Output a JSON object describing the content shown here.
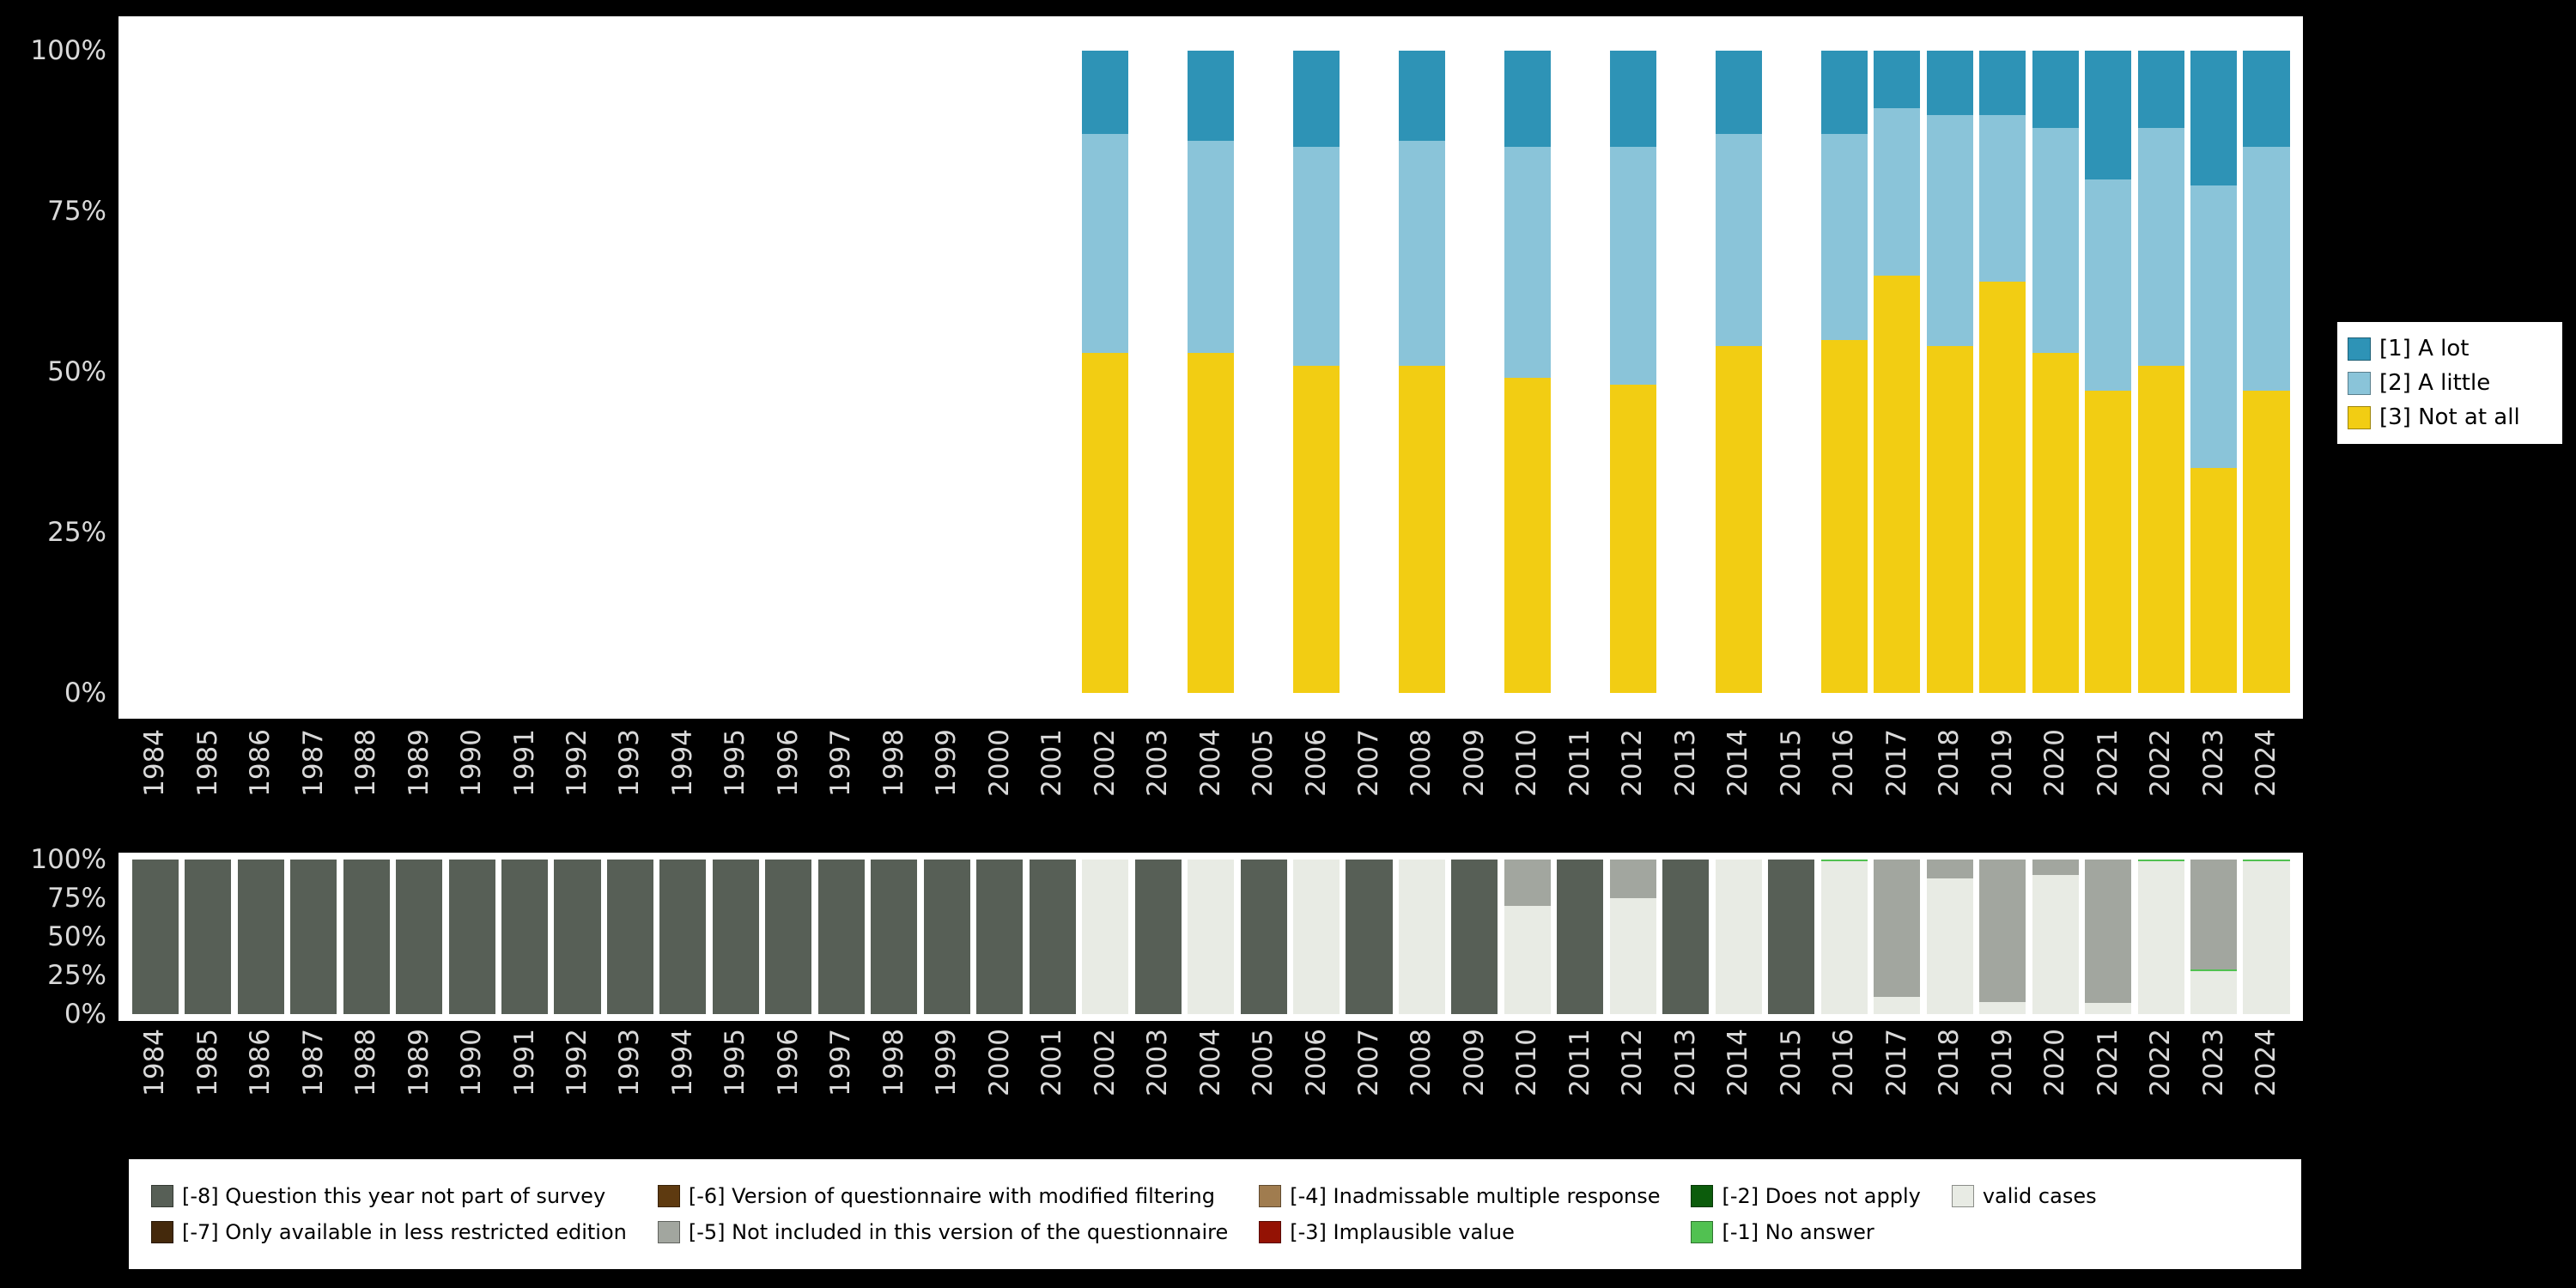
{
  "colors": {
    "background": "#000000",
    "panel": "#ffffff",
    "axis_text": "#d9d9d9"
  },
  "chart_data": [
    {
      "id": "response-distribution",
      "type": "bar",
      "stacked": true,
      "unit": "percent",
      "title": "",
      "xlabel": "",
      "ylabel": "",
      "ylim": [
        0,
        100
      ],
      "grid": false,
      "legend_position": "right",
      "categories": [
        "1984",
        "1985",
        "1986",
        "1987",
        "1988",
        "1989",
        "1990",
        "1991",
        "1992",
        "1993",
        "1994",
        "1995",
        "1996",
        "1997",
        "1998",
        "1999",
        "2000",
        "2001",
        "2002",
        "2003",
        "2004",
        "2005",
        "2006",
        "2007",
        "2008",
        "2009",
        "2010",
        "2011",
        "2012",
        "2013",
        "2014",
        "2015",
        "2016",
        "2017",
        "2018",
        "2019",
        "2020",
        "2021",
        "2022",
        "2023",
        "2024"
      ],
      "yticks": [
        0,
        25,
        50,
        75,
        100
      ],
      "ytick_labels": [
        "0%",
        "25%",
        "50%",
        "75%",
        "100%"
      ],
      "series": [
        {
          "name": "[1] A lot",
          "color": "#2e93b6",
          "values": [
            0,
            0,
            0,
            0,
            0,
            0,
            0,
            0,
            0,
            0,
            0,
            0,
            0,
            0,
            0,
            0,
            0,
            0,
            13,
            0,
            14,
            0,
            15,
            0,
            14,
            0,
            15,
            0,
            15,
            0,
            13,
            0,
            13,
            9,
            10,
            10,
            12,
            20,
            12,
            21,
            15
          ]
        },
        {
          "name": "[2] A little",
          "color": "#8ac4d9",
          "values": [
            0,
            0,
            0,
            0,
            0,
            0,
            0,
            0,
            0,
            0,
            0,
            0,
            0,
            0,
            0,
            0,
            0,
            0,
            34,
            0,
            33,
            0,
            34,
            0,
            35,
            0,
            36,
            0,
            37,
            0,
            33,
            0,
            32,
            26,
            36,
            26,
            35,
            33,
            37,
            44,
            38
          ]
        },
        {
          "name": "[3] Not at all",
          "color": "#f2cd13",
          "values": [
            0,
            0,
            0,
            0,
            0,
            0,
            0,
            0,
            0,
            0,
            0,
            0,
            0,
            0,
            0,
            0,
            0,
            0,
            53,
            0,
            53,
            0,
            51,
            0,
            51,
            0,
            49,
            0,
            48,
            0,
            54,
            0,
            55,
            65,
            54,
            64,
            53,
            47,
            51,
            35,
            47
          ]
        }
      ]
    },
    {
      "id": "missing-values",
      "type": "bar",
      "stacked": true,
      "unit": "percent",
      "title": "",
      "xlabel": "",
      "ylabel": "",
      "ylim": [
        0,
        100
      ],
      "grid": false,
      "legend_position": "bottom",
      "categories": [
        "1984",
        "1985",
        "1986",
        "1987",
        "1988",
        "1989",
        "1990",
        "1991",
        "1992",
        "1993",
        "1994",
        "1995",
        "1996",
        "1997",
        "1998",
        "1999",
        "2000",
        "2001",
        "2002",
        "2003",
        "2004",
        "2005",
        "2006",
        "2007",
        "2008",
        "2009",
        "2010",
        "2011",
        "2012",
        "2013",
        "2014",
        "2015",
        "2016",
        "2017",
        "2018",
        "2019",
        "2020",
        "2021",
        "2022",
        "2023",
        "2024"
      ],
      "yticks": [
        0,
        25,
        50,
        75,
        100
      ],
      "ytick_labels": [
        "0%",
        "25%",
        "50%",
        "75%",
        "100%"
      ],
      "series": [
        {
          "name": "[-8] Question this year not part of survey",
          "color": "#575f56",
          "values": [
            100,
            100,
            100,
            100,
            100,
            100,
            100,
            100,
            100,
            100,
            100,
            100,
            100,
            100,
            100,
            100,
            100,
            100,
            0,
            100,
            0,
            100,
            0,
            100,
            0,
            100,
            0,
            100,
            0,
            100,
            0,
            100,
            0,
            0,
            0,
            0,
            0,
            0,
            0,
            0,
            0
          ]
        },
        {
          "name": "[-5] Not included in this version of the questionnaire",
          "color": "#a2a69f",
          "values": [
            0,
            0,
            0,
            0,
            0,
            0,
            0,
            0,
            0,
            0,
            0,
            0,
            0,
            0,
            0,
            0,
            0,
            0,
            0,
            0,
            0,
            0,
            0,
            0,
            0,
            0,
            30,
            0,
            25,
            0,
            0,
            0,
            0,
            89,
            12,
            92,
            10,
            93,
            0,
            71,
            0
          ]
        },
        {
          "name": "[-1] No answer",
          "color": "#51c151",
          "values": [
            0,
            0,
            0,
            0,
            0,
            0,
            0,
            0,
            0,
            0,
            0,
            0,
            0,
            0,
            0,
            0,
            0,
            0,
            0,
            0,
            0,
            0,
            0,
            0,
            0,
            0,
            0,
            0,
            0,
            0,
            0,
            0,
            1,
            0,
            0,
            0,
            0,
            0,
            1,
            1,
            1
          ]
        },
        {
          "name": "valid cases",
          "color": "#e8ebe4",
          "values": [
            0,
            0,
            0,
            0,
            0,
            0,
            0,
            0,
            0,
            0,
            0,
            0,
            0,
            0,
            0,
            0,
            0,
            0,
            100,
            0,
            100,
            0,
            100,
            0,
            100,
            0,
            70,
            0,
            75,
            0,
            100,
            0,
            99,
            11,
            88,
            8,
            90,
            7,
            99,
            28,
            99
          ]
        }
      ]
    }
  ],
  "legend_main": {
    "items": [
      {
        "label": "[1] A lot",
        "color": "#2e93b6"
      },
      {
        "label": "[2] A little",
        "color": "#8ac4d9"
      },
      {
        "label": "[3] Not at all",
        "color": "#f2cd13"
      }
    ]
  },
  "legend_missing": {
    "items": [
      {
        "label": "[-8] Question this year not part of survey",
        "color": "#575f56"
      },
      {
        "label": "[-6] Version of questionnaire with modified filtering",
        "color": "#5e3a10"
      },
      {
        "label": "[-4] Inadmissable multiple response",
        "color": "#a07c4f"
      },
      {
        "label": "[-2] Does not apply",
        "color": "#0c5c0c"
      },
      {
        "label": "valid cases",
        "color": "#e8ebe4"
      },
      {
        "label": "[-7] Only available in less restricted edition",
        "color": "#44290c"
      },
      {
        "label": "[-5] Not included in this version of the questionnaire",
        "color": "#a2a69f"
      },
      {
        "label": "[-3] Implausible value",
        "color": "#941204"
      },
      {
        "label": "[-1] No answer",
        "color": "#51c151"
      }
    ]
  }
}
